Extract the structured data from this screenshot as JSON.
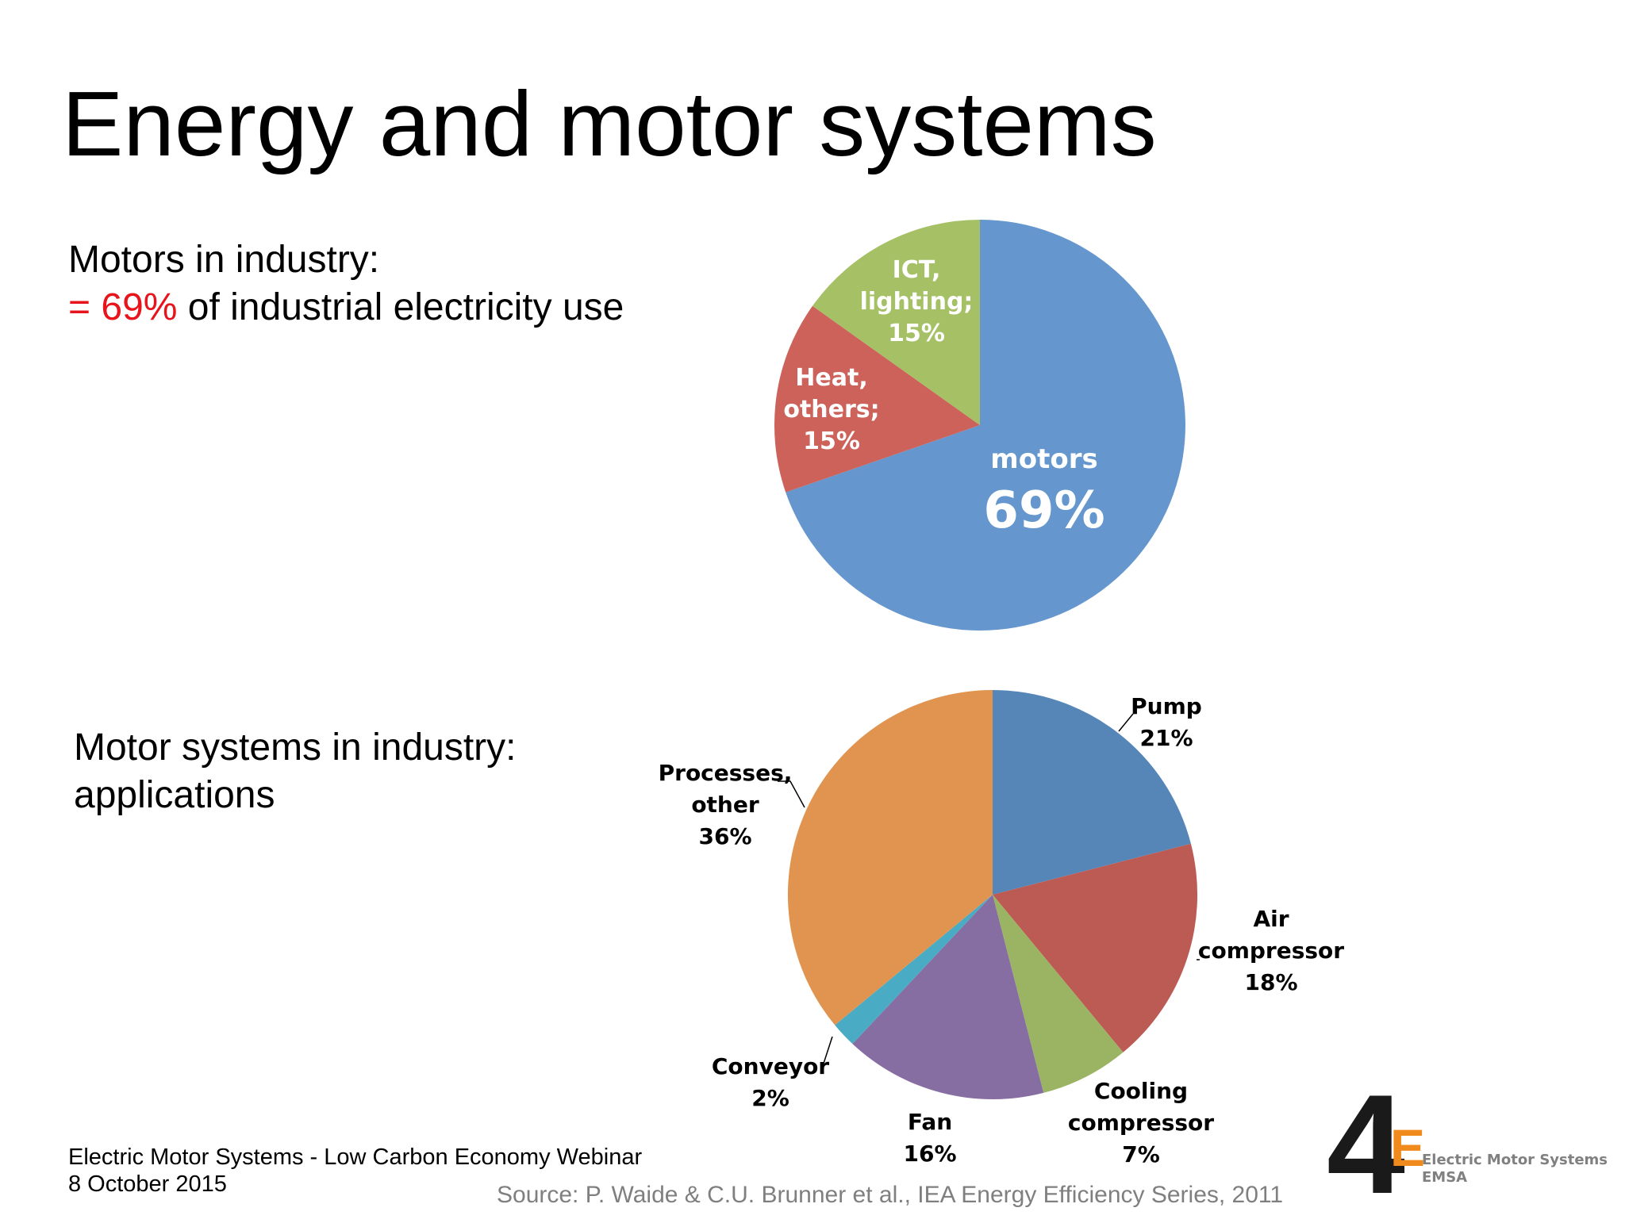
{
  "title": "Energy and motor systems",
  "block1": {
    "line1": "Motors in industry:",
    "line2_red": "= 69%",
    "line2_rest": " of industrial electricity use"
  },
  "block2": {
    "line1": "Motor systems in industry:",
    "line2": "applications"
  },
  "footer": {
    "line1": "Electric Motor Systems - Low Carbon Economy Webinar",
    "line2": "8 October 2015"
  },
  "source": "Source: P. Waide & C.U. Brunner et al., IEA Energy Efficiency Series, 2011",
  "logo": {
    "mark": "4",
    "mark_e": "E",
    "line1": "Electric Motor Systems",
    "line2": "EMSA"
  },
  "chart_data": [
    {
      "type": "pie",
      "slices": [
        {
          "label_lines": [
            "motors"
          ],
          "value_label": "69%",
          "value": 69,
          "color": "#6596cd"
        },
        {
          "label_lines": [
            "Heat,",
            "others;",
            "15%"
          ],
          "value": 15,
          "color": "#cd625b"
        },
        {
          "label_lines": [
            "ICT,",
            "lighting;",
            "15%"
          ],
          "value": 15,
          "color": "#a5c065"
        }
      ]
    },
    {
      "type": "pie",
      "slices": [
        {
          "label_lines": [
            "Pump",
            "21%"
          ],
          "value": 21,
          "color": "#5686b8"
        },
        {
          "label_lines": [
            "Air",
            "compressor",
            "18%"
          ],
          "value": 18,
          "color": "#bc5a54"
        },
        {
          "label_lines": [
            "Cooling",
            "compressor",
            "7%"
          ],
          "value": 7,
          "color": "#9bb463"
        },
        {
          "label_lines": [
            "Fan",
            "16%"
          ],
          "value": 16,
          "color": "#876ea2"
        },
        {
          "label_lines": [
            "Conveyor",
            "2%"
          ],
          "value": 2,
          "color": "#4aabc4"
        },
        {
          "label_lines": [
            "Processes,",
            "other",
            "36%"
          ],
          "value": 36,
          "color": "#e1944f"
        }
      ]
    }
  ]
}
